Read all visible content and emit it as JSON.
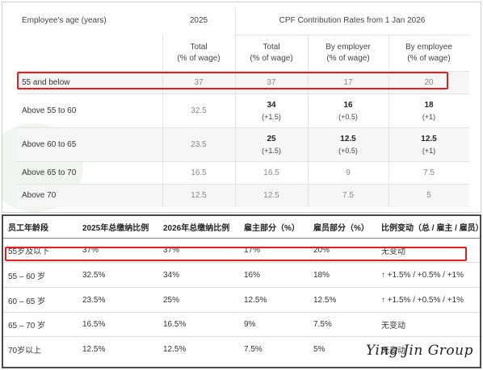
{
  "top_table": {
    "header": {
      "age_label": "Employee's age (years)",
      "year_2025": "2025",
      "cpf_title": "CPF Contribution Rates from 1 Jan 2026",
      "sub": [
        {
          "main": "Total",
          "unit": "(% of wage)"
        },
        {
          "main": "Total",
          "unit": "(% of wage)"
        },
        {
          "main": "By employer",
          "unit": "(% of wage)"
        },
        {
          "main": "By employee",
          "unit": "(% of wage)"
        }
      ]
    },
    "rows": [
      {
        "age": "55 and below",
        "c2025": "37",
        "total": "37",
        "total_change": "",
        "employer": "17",
        "employer_change": "",
        "employee": "20",
        "employee_change": ""
      },
      {
        "age": "Above 55 to 60",
        "c2025": "32.5",
        "total": "34",
        "total_change": "(+1.5)",
        "employer": "16",
        "employer_change": "(+0.5)",
        "employee": "18",
        "employee_change": "(+1)"
      },
      {
        "age": "Above 60 to 65",
        "c2025": "23.5",
        "total": "25",
        "total_change": "(+1.5)",
        "employer": "12.5",
        "employer_change": "(+0.5)",
        "employee": "12.5",
        "employee_change": "(+1)"
      },
      {
        "age": "Above 65 to 70",
        "c2025": "16.5",
        "total": "16.5",
        "total_change": "",
        "employer": "9",
        "employer_change": "",
        "employee": "7.5",
        "employee_change": ""
      },
      {
        "age": "Above 70",
        "c2025": "12.5",
        "total": "12.5",
        "total_change": "",
        "employer": "7.5",
        "employer_change": "",
        "employee": "5",
        "employee_change": ""
      }
    ]
  },
  "bottom_table": {
    "headers": [
      "员工年龄段",
      "2025年总缴纳比例",
      "2026年总缴纳比例",
      "雇主部分（%）",
      "雇员部分（%）",
      "比例变动（总 / 雇主 / 雇员）"
    ],
    "rows": [
      [
        "55岁及以下",
        "37%",
        "37%",
        "17%",
        "20%",
        "无变动"
      ],
      [
        "55 – 60 岁",
        "32.5%",
        "34%",
        "16%",
        "18%",
        "↑ +1.5% / +0.5% / +1%"
      ],
      [
        "60 – 65 岁",
        "23.5%",
        "25%",
        "12.5%",
        "12.5%",
        "↑ +1.5% / +0.5% / +1%"
      ],
      [
        "65 – 70 岁",
        "16.5%",
        "16.5%",
        "9%",
        "7.5%",
        "无变动"
      ],
      [
        "70岁以上",
        "12.5%",
        "12.5%",
        "7.5%",
        "5%",
        "无变动"
      ]
    ]
  },
  "signature": "Ying Jin Group",
  "colors": {
    "highlight": "#e02020",
    "shaded_row": "#f6f6f6"
  }
}
